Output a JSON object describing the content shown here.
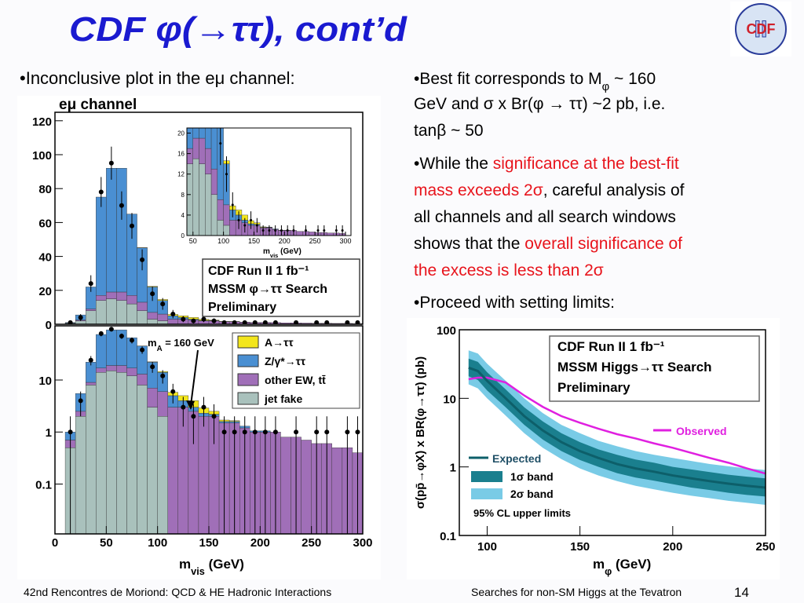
{
  "header": {
    "title": "CDF φ(→ττ), cont’d",
    "logo": "CDF"
  },
  "left": {
    "bullet": "•Inconclusive plot in the eμ channel:"
  },
  "right": {
    "bullets": [
      [
        [
          {
            "text": "•Best fit corresponds to M"
          },
          {
            "text": "φ",
            "sub": true
          },
          {
            "text": " ~ 160"
          }
        ],
        [
          {
            "text": "GeV and σ x Br(φ → ττ) ~2 pb, i.e."
          }
        ],
        [
          {
            "text": "tanβ ~ 50"
          }
        ]
      ],
      [
        [
          {
            "text": "•While the "
          },
          {
            "text": "significance at the best-fit",
            "color": "#e8141c"
          }
        ],
        [
          {
            "text": "mass exceeds 2σ",
            "color": "#e8141c"
          },
          {
            "text": ", careful analysis of"
          }
        ],
        [
          {
            "text": "all channels and all search windows"
          }
        ],
        [
          {
            "text": "shows that the "
          },
          {
            "text": "overall significance of",
            "color": "#e8141c"
          }
        ],
        [
          {
            "text": "the excess is less than 2σ",
            "color": "#e8141c"
          }
        ]
      ],
      [
        [
          {
            "text": "•Proceed with setting limits:"
          }
        ]
      ]
    ]
  },
  "footer": {
    "left": "42nd Rencontres de Moriond: QCD & HE Hadronic Interactions",
    "center": "Searches for non-SM Higgs at the Tevatron",
    "page": "14"
  },
  "chart_data": [
    {
      "type": "histogram",
      "title": "eμ channel",
      "bins": [
        10,
        20,
        30,
        40,
        50,
        60,
        70,
        80,
        90,
        100,
        110,
        120,
        130,
        140,
        150,
        160,
        170,
        180,
        190,
        200,
        210,
        220,
        230,
        240,
        250,
        260,
        270,
        280,
        290,
        300
      ],
      "series": [
        {
          "name": "jet fake",
          "color": "#a9c1bc",
          "values": [
            0.5,
            2,
            8,
            14,
            15,
            14,
            12,
            8,
            3,
            2,
            0,
            0,
            0,
            0,
            0,
            0,
            0,
            0,
            0,
            0,
            0,
            0,
            0,
            0,
            0,
            0,
            0,
            0,
            0
          ]
        },
        {
          "name": "other EW, tt̄",
          "color": "#a06fb8",
          "values": [
            0.2,
            0.5,
            1,
            3,
            4,
            5,
            5,
            5,
            4,
            4,
            3,
            3,
            2.5,
            2,
            2,
            1.5,
            1.5,
            1.2,
            1,
            1,
            1,
            0.8,
            0.8,
            0.7,
            0.6,
            0.6,
            0.5,
            0.5,
            0.4
          ]
        },
        {
          "name": "Z/γ*→ττ",
          "color": "#4a8fd2",
          "values": [
            0.3,
            3,
            13,
            58,
            73,
            73,
            48,
            32,
            15,
            8,
            2,
            1,
            0.5,
            0.3,
            0.2,
            0.1,
            0.1,
            0.1,
            0.05,
            0.05,
            0,
            0,
            0,
            0,
            0,
            0,
            0,
            0,
            0
          ]
        },
        {
          "name": "A→ττ",
          "color": "#f3e61c",
          "values": [
            0,
            0,
            0,
            0,
            0,
            0,
            0,
            0.2,
            0.4,
            0.6,
            0.8,
            1,
            1,
            0.6,
            0.3,
            0.1,
            0.05,
            0,
            0,
            0,
            0,
            0,
            0,
            0,
            0,
            0,
            0,
            0,
            0
          ]
        }
      ],
      "observed": [
        1,
        4,
        24,
        78,
        95,
        70,
        58,
        38,
        18,
        12,
        6,
        3,
        2,
        3,
        2,
        1,
        1,
        1,
        1,
        1,
        1,
        0,
        1,
        0,
        1,
        1,
        0,
        1,
        1
      ],
      "xlim": [
        0,
        300
      ],
      "xticks": [
        0,
        50,
        100,
        150,
        200,
        250,
        300
      ],
      "xlabel": [
        "m",
        "vis",
        "  (GeV)"
      ],
      "panels": [
        {
          "log": false,
          "ylim": [
            0,
            125
          ],
          "yticks": [
            0,
            20,
            40,
            60,
            80,
            100,
            120
          ]
        },
        {
          "log": true,
          "ylim": [
            0.011,
            110
          ],
          "yticks": [
            0.1,
            1,
            10
          ]
        }
      ],
      "inset": {
        "xlim": [
          40,
          309
        ],
        "xticks": [
          50,
          100,
          150,
          200,
          250,
          300
        ],
        "ylim": [
          0,
          21
        ],
        "yticks": [
          0,
          4,
          8,
          12,
          16,
          20
        ],
        "xlabel": [
          "m",
          "vis",
          " (GeV)"
        ]
      },
      "box": [
        "CDF Run II  1 fb⁻¹",
        "MSSM φ→ττ Search",
        "Preliminary"
      ],
      "annotation": [
        "m",
        "A",
        " = 160 GeV"
      ]
    },
    {
      "type": "line",
      "x": [
        90,
        95,
        100,
        110,
        120,
        130,
        140,
        150,
        160,
        170,
        180,
        190,
        200,
        210,
        220,
        230,
        240,
        250
      ],
      "series": [
        {
          "name": "Observed",
          "color": "#e020e0",
          "values": [
            19,
            20,
            20,
            17,
            11,
            7.5,
            5.5,
            4.4,
            3.6,
            3.0,
            2.6,
            2.2,
            1.9,
            1.6,
            1.35,
            1.15,
            0.95,
            0.8
          ]
        },
        {
          "name": "Expected",
          "color": "#0d5f6a",
          "values": [
            28,
            25,
            18,
            10,
            5.5,
            3.4,
            2.3,
            1.7,
            1.35,
            1.1,
            0.95,
            0.85,
            0.75,
            0.68,
            0.62,
            0.57,
            0.53,
            0.5
          ]
        }
      ],
      "bands": [
        {
          "name": "2σ  band",
          "color": "#79cbe6",
          "low": [
            16,
            14,
            10,
            5.6,
            3.1,
            1.9,
            1.3,
            0.95,
            0.75,
            0.62,
            0.53,
            0.47,
            0.42,
            0.38,
            0.35,
            0.32,
            0.3,
            0.28
          ],
          "high": [
            50,
            45,
            32,
            18,
            10,
            6.1,
            4.1,
            3.1,
            2.4,
            2.0,
            1.7,
            1.5,
            1.35,
            1.22,
            1.1,
            1.02,
            0.95,
            0.9
          ]
        },
        {
          "name": "1σ  band",
          "color": "#1a7f8e",
          "low": [
            21,
            18.5,
            13,
            7.4,
            4.1,
            2.5,
            1.7,
            1.26,
            1.0,
            0.81,
            0.7,
            0.63,
            0.56,
            0.5,
            0.46,
            0.42,
            0.39,
            0.37
          ],
          "high": [
            38,
            34,
            24,
            13.5,
            7.4,
            4.6,
            3.1,
            2.3,
            1.8,
            1.5,
            1.28,
            1.15,
            1.0,
            0.92,
            0.84,
            0.77,
            0.72,
            0.68
          ]
        }
      ],
      "xlim": [
        85,
        250
      ],
      "xticks": [
        100,
        150,
        200,
        250
      ],
      "log": true,
      "ylim": [
        0.1,
        100
      ],
      "yticks": [
        0.1,
        1,
        10,
        100
      ],
      "xlabel": [
        "m",
        "φ",
        "  (GeV)"
      ],
      "ylabel": "σ(pp̄→φX) x BR(φ→ττ)  (pb)",
      "box": [
        "CDF Run II   1 fb⁻¹",
        "MSSM Higgs→ττ  Search",
        "Preliminary"
      ],
      "note": "95% CL upper limits"
    }
  ]
}
